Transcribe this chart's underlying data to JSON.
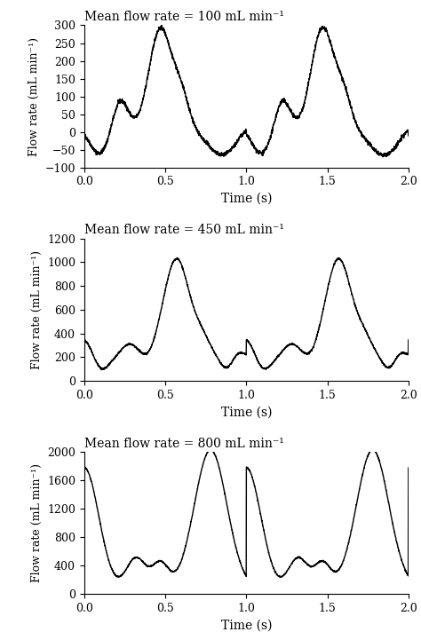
{
  "plots": [
    {
      "title": "Mean flow rate = 100 mL min⁻¹",
      "ylabel": "Flow rate (mL min⁻¹)",
      "xlabel": "Time (s)",
      "ylim": [
        -100,
        300
      ],
      "yticks": [
        -100,
        -50,
        0,
        50,
        100,
        150,
        200,
        250,
        300
      ],
      "xlim": [
        0,
        2
      ],
      "xticks": [
        0,
        0.5,
        1,
        1.5,
        2
      ]
    },
    {
      "title": "Mean flow rate = 450 mL min⁻¹",
      "ylabel": "Flow rate (mL min⁻¹)",
      "xlabel": "Time (s)",
      "ylim": [
        0,
        1200
      ],
      "yticks": [
        0,
        200,
        400,
        600,
        800,
        1000,
        1200
      ],
      "xlim": [
        0,
        2
      ],
      "xticks": [
        0,
        0.5,
        1,
        1.5,
        2
      ]
    },
    {
      "title": "Mean flow rate = 800 mL min⁻¹",
      "ylabel": "Flow rate (mL min⁻¹)",
      "xlabel": "Time (s)",
      "ylim": [
        0,
        2000
      ],
      "yticks": [
        0,
        400,
        800,
        1200,
        1600,
        2000
      ],
      "xlim": [
        0,
        2
      ],
      "xticks": [
        0,
        0.5,
        1,
        1.5,
        2
      ]
    }
  ],
  "line_color": "#000000",
  "line_width": 1.0,
  "bg_color": "#ffffff",
  "title_fontsize": 10,
  "label_fontsize": 10,
  "tick_fontsize": 9
}
